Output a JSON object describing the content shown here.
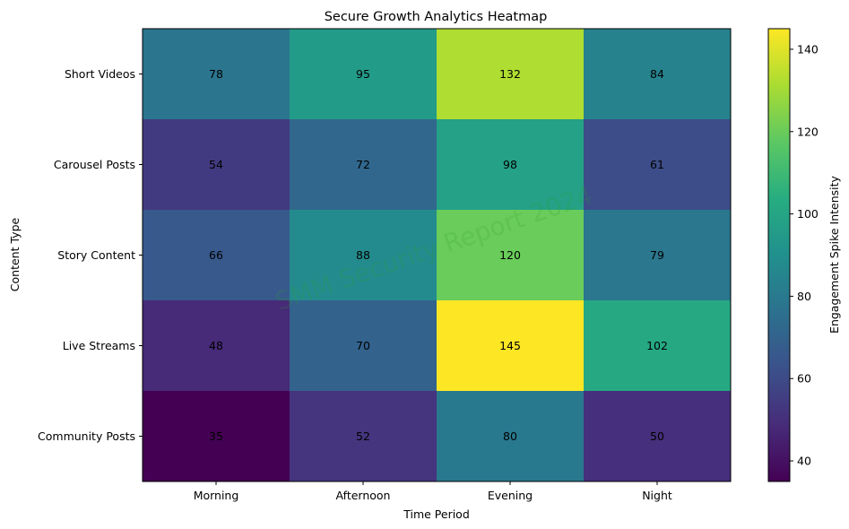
{
  "chart_data": {
    "type": "heatmap",
    "title": "Secure Growth Analytics Heatmap",
    "xlabel": "Time Period",
    "ylabel": "Content Type",
    "x_categories": [
      "Morning",
      "Afternoon",
      "Evening",
      "Night"
    ],
    "y_categories": [
      "Short Videos",
      "Carousel Posts",
      "Story Content",
      "Live Streams",
      "Community Posts"
    ],
    "values": [
      [
        78,
        95,
        132,
        84
      ],
      [
        54,
        72,
        98,
        61
      ],
      [
        66,
        88,
        120,
        79
      ],
      [
        48,
        70,
        145,
        102
      ],
      [
        35,
        52,
        80,
        50
      ]
    ],
    "colorbar": {
      "label": "Engagement Spike Intensity",
      "min": 35,
      "max": 145,
      "ticks": [
        40,
        60,
        80,
        100,
        120,
        140
      ],
      "colormap": "viridis"
    },
    "watermark": {
      "text": "SMM Security Report 2024",
      "color": "#2ca02c"
    }
  }
}
